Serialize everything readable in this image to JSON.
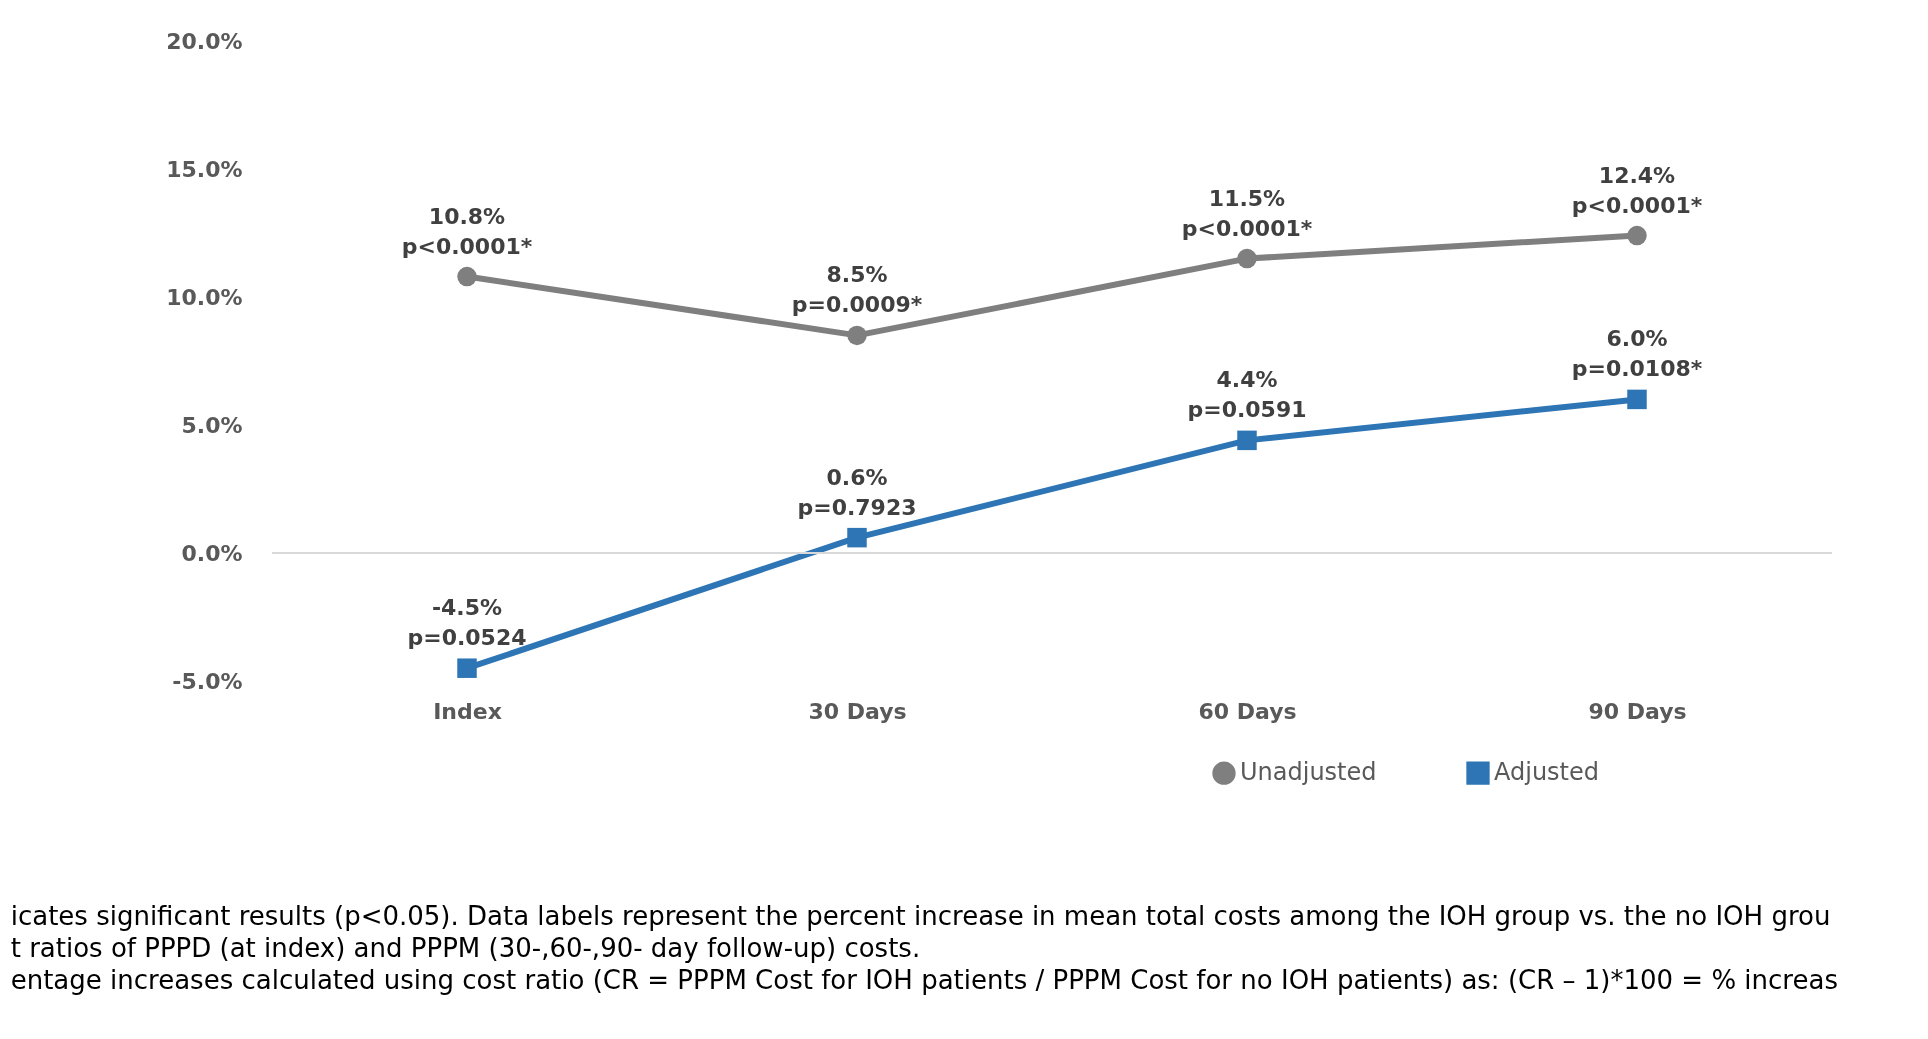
{
  "chart_data": {
    "type": "line",
    "categories": [
      "Index",
      "30 Days",
      "60 Days",
      "90 Days"
    ],
    "series": [
      {
        "name": "Unadjusted",
        "color": "#7f7f7f",
        "marker": "circle",
        "values": [
          10.8,
          8.5,
          11.5,
          12.4
        ],
        "value_labels": [
          "10.8%\np<0.0001*",
          "8.5%\np=0.0009*",
          "11.5%\np<0.0001*",
          "12.4%\np<0.0001*"
        ]
      },
      {
        "name": "Adjusted",
        "color": "#2e75b6",
        "marker": "square",
        "values": [
          -4.5,
          0.6,
          4.4,
          6.0
        ],
        "value_labels": [
          "-4.5%\np=0.0524",
          "0.6%\np=0.7923",
          "4.4%\np=0.0591",
          "6.0%\np=0.0108*"
        ]
      }
    ],
    "ylim": [
      -5,
      20
    ],
    "yticks": [
      {
        "value": -5,
        "label": "-5.0%"
      },
      {
        "value": 0,
        "label": "0.0%"
      },
      {
        "value": 5,
        "label": "5.0%"
      },
      {
        "value": 10,
        "label": "10.0%"
      },
      {
        "value": 15,
        "label": "15.0%"
      },
      {
        "value": 20,
        "label": "20.0%"
      }
    ],
    "ref_lines": [
      {
        "axis": "y",
        "value": 0,
        "color": "#d9d9d9"
      }
    ],
    "grid": false,
    "legend": "bottom right",
    "line_style": "solid",
    "annotations": [
      "icates significant results (p<0.05). Data labels represent the percent increase in mean total costs among the IOH group vs. the no IOH grou",
      "t ratios of PPPD (at index) and PPPM (30-,60-,90- day follow-up) costs.",
      "entage increases calculated using cost ratio (CR = PPPM Cost for IOH patients / PPPM Cost for no IOH patients) as: (CR – 1)*100 = % increas"
    ]
  }
}
